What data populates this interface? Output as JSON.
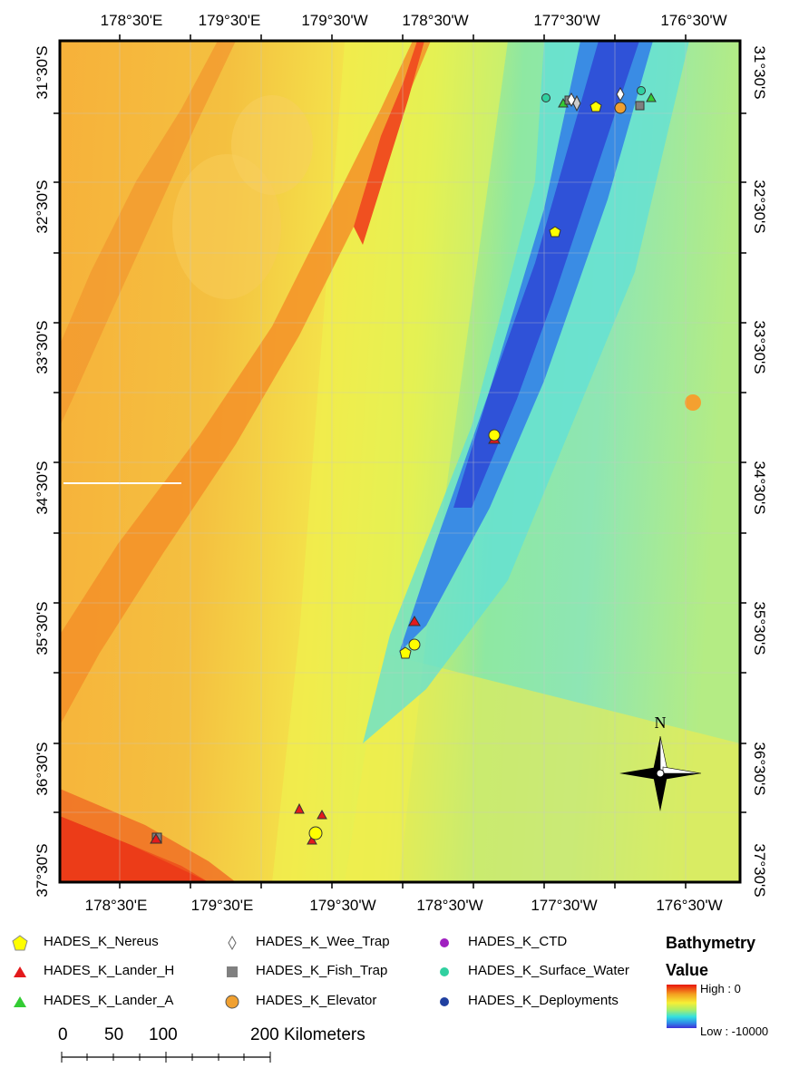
{
  "map": {
    "top_labels": [
      "178°30'E",
      "179°30'E",
      "179°30'W",
      "178°30'W",
      "177°30'W",
      "176°30'W"
    ],
    "bottom_labels": [
      "178°30'E",
      "179°30'E",
      "179°30'W",
      "178°30'W",
      "177°30'W",
      "176°30'W"
    ],
    "left_labels": [
      "31°30'S",
      "32°30'S",
      "33°30'S",
      "34°30'S",
      "35°30'S",
      "36°30'S",
      "37°30'S"
    ],
    "right_labels": [
      "31°30'S",
      "32°30'S",
      "33°30'S",
      "34°30'S",
      "35°30'S",
      "36°30'S",
      "37°30'S"
    ],
    "north_arrow_label": "N"
  },
  "legend": {
    "items": [
      {
        "label": "HADES_K_Nereus",
        "symbol": "pentagon",
        "color": "#ffff00"
      },
      {
        "label": "HADES_K_Lander_H",
        "symbol": "triangle",
        "color": "#e31a1c"
      },
      {
        "label": "HADES_K_Lander_A",
        "symbol": "triangle",
        "color": "#33cc33"
      },
      {
        "label": "HADES_K_Wee_Trap",
        "symbol": "diamond",
        "color": "#ffffff"
      },
      {
        "label": "HADES_K_Fish_Trap",
        "symbol": "square",
        "color": "#808080"
      },
      {
        "label": "HADES_K_Elevator",
        "symbol": "circle",
        "color": "#f0a030"
      },
      {
        "label": "HADES_K_CTD",
        "symbol": "circle",
        "color": "#a020c0"
      },
      {
        "label": "HADES_K_Surface_Water",
        "symbol": "circle",
        "color": "#30d0a0"
      },
      {
        "label": "HADES_K_Deployments",
        "symbol": "circle",
        "color": "#2040a0"
      }
    ],
    "bathymetry_title": "Bathymetry",
    "bathymetry_value_label": "Value",
    "high_label": "High : 0",
    "low_label": "Low : -10000"
  },
  "scale_bar": {
    "labels": [
      "0",
      "50",
      "100",
      "200 Kilometers"
    ]
  }
}
